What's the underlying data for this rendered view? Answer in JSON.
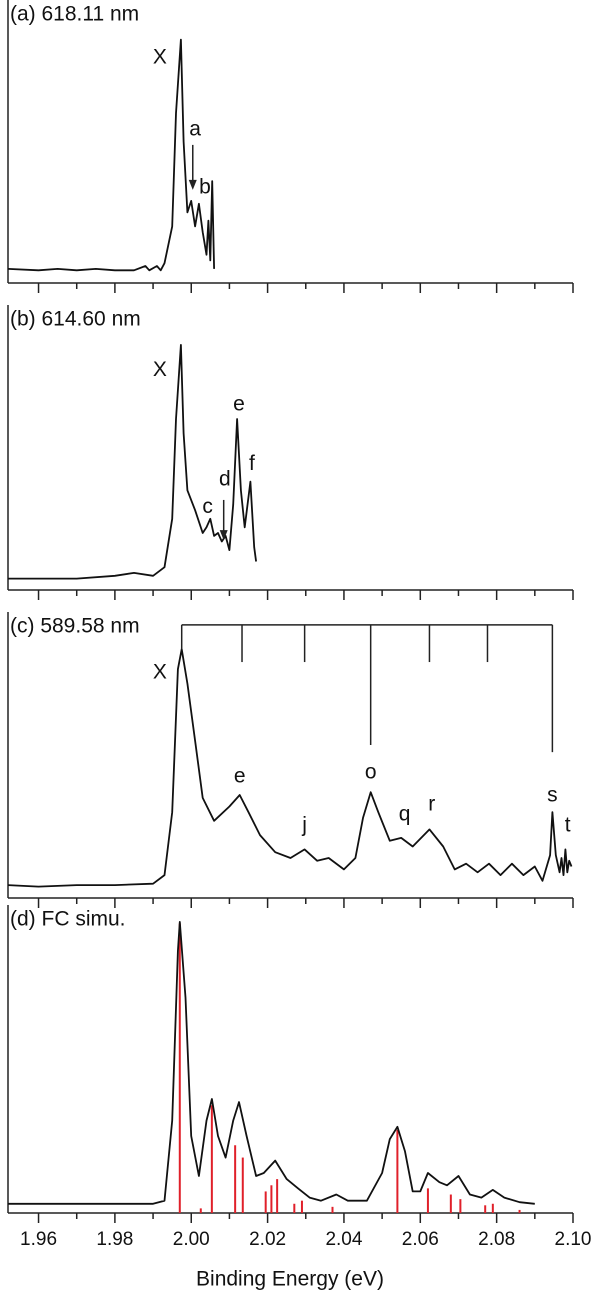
{
  "chart_data": [
    {
      "type": "line",
      "title": "(a) 618.11 nm",
      "color": "#111111",
      "ylim": [
        0,
        100
      ],
      "x": [
        1.952,
        1.96,
        1.965,
        1.97,
        1.975,
        1.98,
        1.985,
        1.988,
        1.989,
        1.991,
        1.992,
        1.993,
        1.995,
        1.996,
        1.9973,
        1.998,
        1.999,
        2.0,
        2.001,
        2.002,
        2.003,
        2.004,
        2.0045,
        2.005,
        2.0055,
        2.006
      ],
      "values": [
        5,
        4.5,
        5,
        4.5,
        5,
        4.5,
        4.5,
        6,
        4.5,
        6,
        4.5,
        7,
        20,
        60,
        86,
        50,
        25,
        29,
        20,
        28,
        18,
        10,
        22,
        8,
        36,
        5
      ],
      "annotations": [
        {
          "text": "X",
          "x": 1.9918,
          "y": 79.5
        },
        {
          "text": "a",
          "x": 2.001,
          "y": 54
        },
        {
          "text": "b",
          "x": 2.0036,
          "y": 33.5
        }
      ],
      "arrows": [
        {
          "x": 2.0004,
          "y1": 48.8,
          "y2": 32.9
        }
      ]
    },
    {
      "type": "line",
      "title": "(b) 614.60 nm",
      "color": "#111111",
      "ylim": [
        0,
        100
      ],
      "x": [
        1.952,
        1.97,
        1.98,
        1.985,
        1.99,
        1.993,
        1.995,
        1.996,
        1.9973,
        1.998,
        1.999,
        2.001,
        2.003,
        2.004,
        2.005,
        2.006,
        2.007,
        2.008,
        2.009,
        2.01,
        2.011,
        2.012,
        2.013,
        2.014,
        2.0155,
        2.0165,
        2.017
      ],
      "values": [
        4,
        4,
        5,
        6,
        5,
        8,
        25,
        60,
        86,
        55,
        35,
        28,
        20,
        22,
        25,
        19,
        20,
        17,
        19,
        14,
        30,
        60,
        35,
        22,
        38,
        15,
        10
      ],
      "annotations": [
        {
          "text": "X",
          "x": 1.9918,
          "y": 77
        },
        {
          "text": "c",
          "x": 2.0043,
          "y": 29
        },
        {
          "text": "d",
          "x": 2.0088,
          "y": 38.6
        },
        {
          "text": "e",
          "x": 2.0125,
          "y": 65
        },
        {
          "text": "f",
          "x": 2.0159,
          "y": 44
        }
      ],
      "arrows": [
        {
          "x": 2.0085,
          "y1": 31.6,
          "y2": 17.5
        }
      ]
    },
    {
      "type": "line",
      "title": "(c) 589.58 nm",
      "color": "#111111",
      "ylim": [
        0,
        100
      ],
      "x": [
        1.952,
        1.96,
        1.97,
        1.98,
        1.99,
        1.993,
        1.995,
        1.9965,
        1.9975,
        1.999,
        2.001,
        2.003,
        2.006,
        2.01,
        2.0127,
        2.015,
        2.018,
        2.022,
        2.026,
        2.0297,
        2.033,
        2.036,
        2.04,
        2.043,
        2.045,
        2.047,
        2.049,
        2.052,
        2.055,
        2.058,
        2.0624,
        2.066,
        2.069,
        2.072,
        2.075,
        2.078,
        2.081,
        2.084,
        2.087,
        2.09,
        2.092,
        2.094,
        2.0946,
        2.0955,
        2.0965,
        2.097,
        2.0975,
        2.098,
        2.0985,
        2.099,
        2.0996
      ],
      "values": [
        4.5,
        4,
        4.5,
        4.5,
        5,
        8,
        30,
        80,
        87,
        75,
        55,
        35,
        27,
        32,
        36,
        30,
        22,
        16,
        14,
        17,
        13,
        14,
        10,
        14,
        28,
        37,
        30,
        20,
        21,
        18,
        24,
        18,
        10,
        12,
        9,
        12,
        8,
        12,
        8,
        11,
        6,
        15,
        30,
        15,
        9,
        14,
        8,
        17,
        9,
        13,
        11
      ],
      "annotations": [
        {
          "text": "X",
          "x": 1.9918,
          "y": 78.7
        },
        {
          "text": "e",
          "x": 2.0127,
          "y": 42.3
        },
        {
          "text": "j",
          "x": 2.0297,
          "y": 25.2
        },
        {
          "text": "o",
          "x": 2.047,
          "y": 43.7
        },
        {
          "text": "q",
          "x": 2.0559,
          "y": 29
        },
        {
          "text": "r",
          "x": 2.063,
          "y": 32.5
        },
        {
          "text": "s",
          "x": 2.0946,
          "y": 35.7
        },
        {
          "text": "t",
          "x": 2.0986,
          "y": 25.2
        }
      ],
      "comb": {
        "x": [
          1.9975,
          2.0133,
          2.0297,
          2.047,
          2.0624,
          2.0776,
          2.0946
        ],
        "top": 95.5,
        "bottom": [
          87,
          82.5,
          82.5,
          53.5,
          82.5,
          82.5,
          51
        ]
      }
    },
    {
      "type": "line",
      "title": "(d) FC simu.",
      "color": "#111111",
      "ylim": [
        0,
        100
      ],
      "xlim": [
        1.952,
        2.1
      ],
      "xlabel": "Binding Energy (eV)",
      "xticks": [
        1.96,
        1.98,
        {
          "value": 2,
          "label": "2.00"
        },
        2.02,
        2.04,
        2.06,
        2.08,
        {
          "value": 2.1,
          "label": "2.10"
        }
      ],
      "xminorticks": [
        1.97,
        1.99,
        2.01,
        2.03,
        2.05,
        2.07,
        2.09
      ],
      "x": [
        1.952,
        1.99,
        1.993,
        1.995,
        1.9965,
        1.997,
        1.9985,
        2.0,
        2.002,
        2.004,
        2.0054,
        2.007,
        2.009,
        2.011,
        2.0125,
        2.0145,
        2.017,
        2.019,
        2.022,
        2.025,
        2.028,
        2.031,
        2.034,
        2.038,
        2.041,
        2.046,
        2.05,
        2.052,
        2.054,
        2.056,
        2.058,
        2.06,
        2.062,
        2.065,
        2.067,
        2.07,
        2.073,
        2.076,
        2.079,
        2.082,
        2.086,
        2.09
      ],
      "values": [
        3,
        3,
        4,
        30,
        85,
        94.5,
        70,
        25,
        12,
        30,
        37,
        25,
        18,
        30,
        36,
        25,
        12,
        13,
        17,
        11,
        8,
        5,
        4,
        6,
        4,
        4,
        13,
        24,
        28,
        20,
        7,
        7,
        13,
        10,
        9,
        12,
        6,
        5,
        7.5,
        5,
        3.5,
        3
      ],
      "sticks": {
        "color": "#e0202a",
        "x": [
          1.997,
          2.0025,
          2.0054,
          2.0115,
          2.0135,
          2.0195,
          2.021,
          2.0225,
          2.027,
          2.029,
          2.037,
          2.054,
          2.062,
          2.068,
          2.0705,
          2.077,
          2.079,
          2.086
        ],
        "values": [
          94,
          1.5,
          35,
          22,
          18,
          7,
          9,
          11,
          3,
          4,
          2,
          27,
          8,
          6,
          4.5,
          2.5,
          3,
          1
        ]
      }
    }
  ]
}
